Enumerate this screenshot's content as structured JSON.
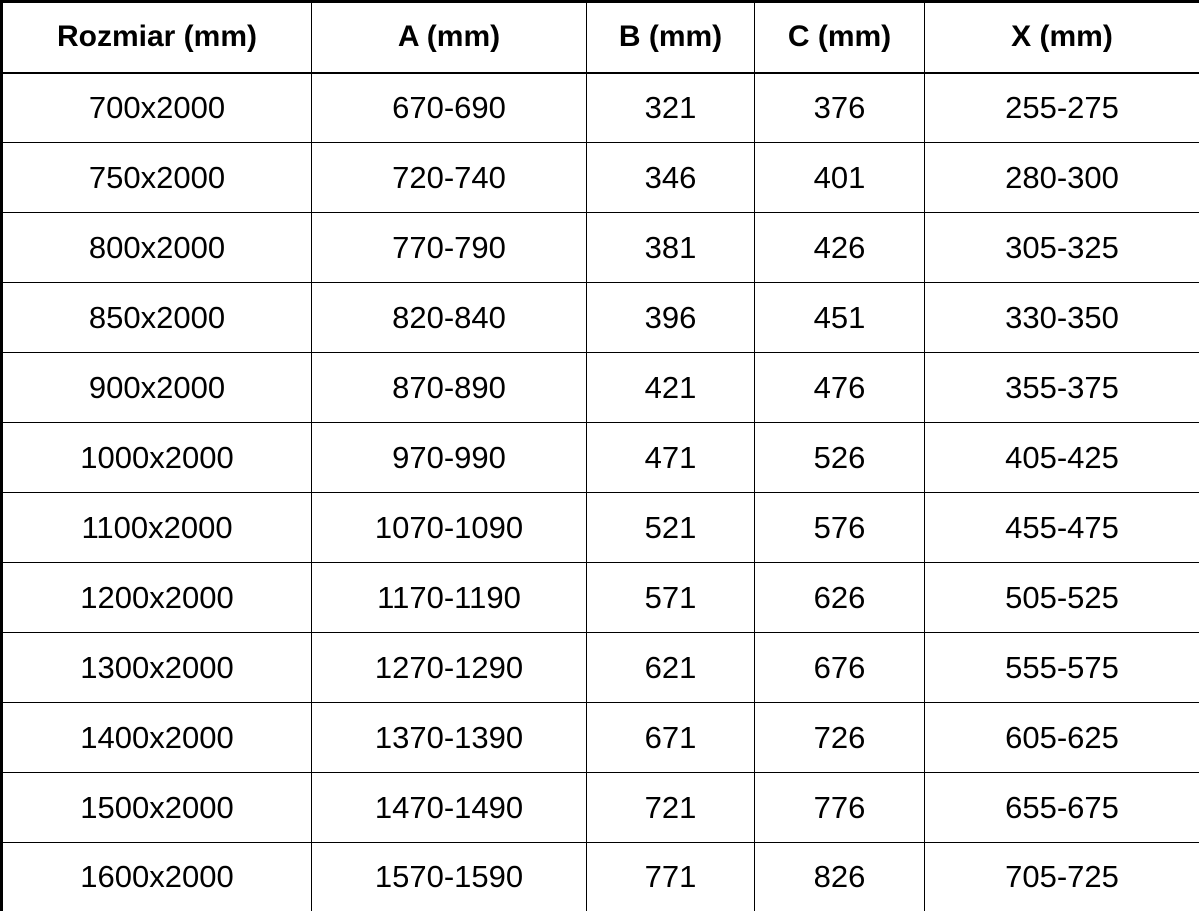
{
  "chart_data": {
    "type": "table",
    "columns": [
      "Rozmiar (mm)",
      "A (mm)",
      "B (mm)",
      "C (mm)",
      "X (mm)"
    ],
    "rows": [
      [
        "700x2000",
        "670-690",
        "321",
        "376",
        "255-275"
      ],
      [
        "750x2000",
        "720-740",
        "346",
        "401",
        "280-300"
      ],
      [
        "800x2000",
        "770-790",
        "381",
        "426",
        "305-325"
      ],
      [
        "850x2000",
        "820-840",
        "396",
        "451",
        "330-350"
      ],
      [
        "900x2000",
        "870-890",
        "421",
        "476",
        "355-375"
      ],
      [
        "1000x2000",
        "970-990",
        "471",
        "526",
        "405-425"
      ],
      [
        "1100x2000",
        "1070-1090",
        "521",
        "576",
        "455-475"
      ],
      [
        "1200x2000",
        "1170-1190",
        "571",
        "626",
        "505-525"
      ],
      [
        "1300x2000",
        "1270-1290",
        "621",
        "676",
        "555-575"
      ],
      [
        "1400x2000",
        "1370-1390",
        "671",
        "726",
        "605-625"
      ],
      [
        "1500x2000",
        "1470-1490",
        "721",
        "776",
        "655-675"
      ],
      [
        "1600x2000",
        "1570-1590",
        "771",
        "826",
        "705-725"
      ]
    ]
  },
  "colors": {
    "border": "#000000",
    "text": "#000000",
    "background": "#ffffff"
  }
}
